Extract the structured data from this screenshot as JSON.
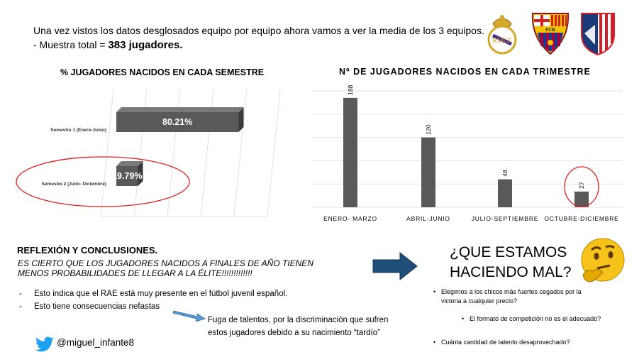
{
  "intro": {
    "line1": "Una vez vistos los datos desglosados equipo por equipo ahora vamos a ver la media de los 3 equipos.",
    "line2_prefix": "- Muestra total = ",
    "line2_bold": "383 jugadores."
  },
  "logos": [
    "real-madrid-crest",
    "fc-barcelona-crest",
    "atletico-madrid-crest"
  ],
  "colors": {
    "bar": "#595959",
    "bar_dark": "#3a3a3a",
    "circle": "#e02020",
    "arrow": "#1f4e79",
    "twitter": "#1da1f2"
  },
  "chart_data": [
    {
      "type": "bar",
      "orientation": "horizontal",
      "title": "% JUGADORES NACIDOS EN CADA SEMESTRE",
      "categories": [
        "Semestre 1 (Enero-Junio)",
        "Semestre 2 (Julio- Diciembre)"
      ],
      "values": [
        80.21,
        19.79
      ],
      "data_labels": [
        "80.21%",
        "19.79%"
      ],
      "unit": "%",
      "highlighted": "Semestre 2 (Julio- Diciembre)"
    },
    {
      "type": "bar",
      "orientation": "vertical",
      "title": "Nº DE JUGADORES NACIDOS EN CADA TRIMESTRE",
      "categories": [
        "ENERO- MARZO",
        "ABRIL-JUNIO",
        "JULIO-SEPTIEMBRE",
        "OCTUBRE-DICIEMBRE"
      ],
      "values": [
        188,
        120,
        48,
        27
      ],
      "data_labels": [
        "188",
        "120",
        "48",
        "27"
      ],
      "highlighted": "OCTUBRE-DICIEMBRE"
    }
  ],
  "reflexion": {
    "title": "REFLEXIÓN Y CONCLUSIONES.",
    "question": "ES CIERTO QUE LOS JUGADORES NACIDOS A FINALES DE AÑO TIENEN MENOS PROBABILIDADES DE LLEGAR A LA ÉLITE!!!!!!!!!!!!!",
    "bullets": [
      "Esto indica que el RAE está muy presente en el fútbol juvenil español.",
      "Esto tiene consecuencias nefastas"
    ],
    "fuga": "Fuga de talentos, por la discriminación que sufren estos jugadores debido a su nacimiento “tardío”"
  },
  "twitter": {
    "icon": "twitter-bird-icon",
    "handle": "@miguel_infante8"
  },
  "que_estamos": {
    "line1": "¿QUE ESTAMOS",
    "line2": "HACIENDO MAL?",
    "emoji": "thinking-face-icon",
    "items": [
      "Elegimos a los chicos más fuertes cegados por la victoria a cualquier precio?",
      "El formato de competición no es el adecuado?",
      "Cuánta cantidad de talento desaprovechado?"
    ]
  }
}
